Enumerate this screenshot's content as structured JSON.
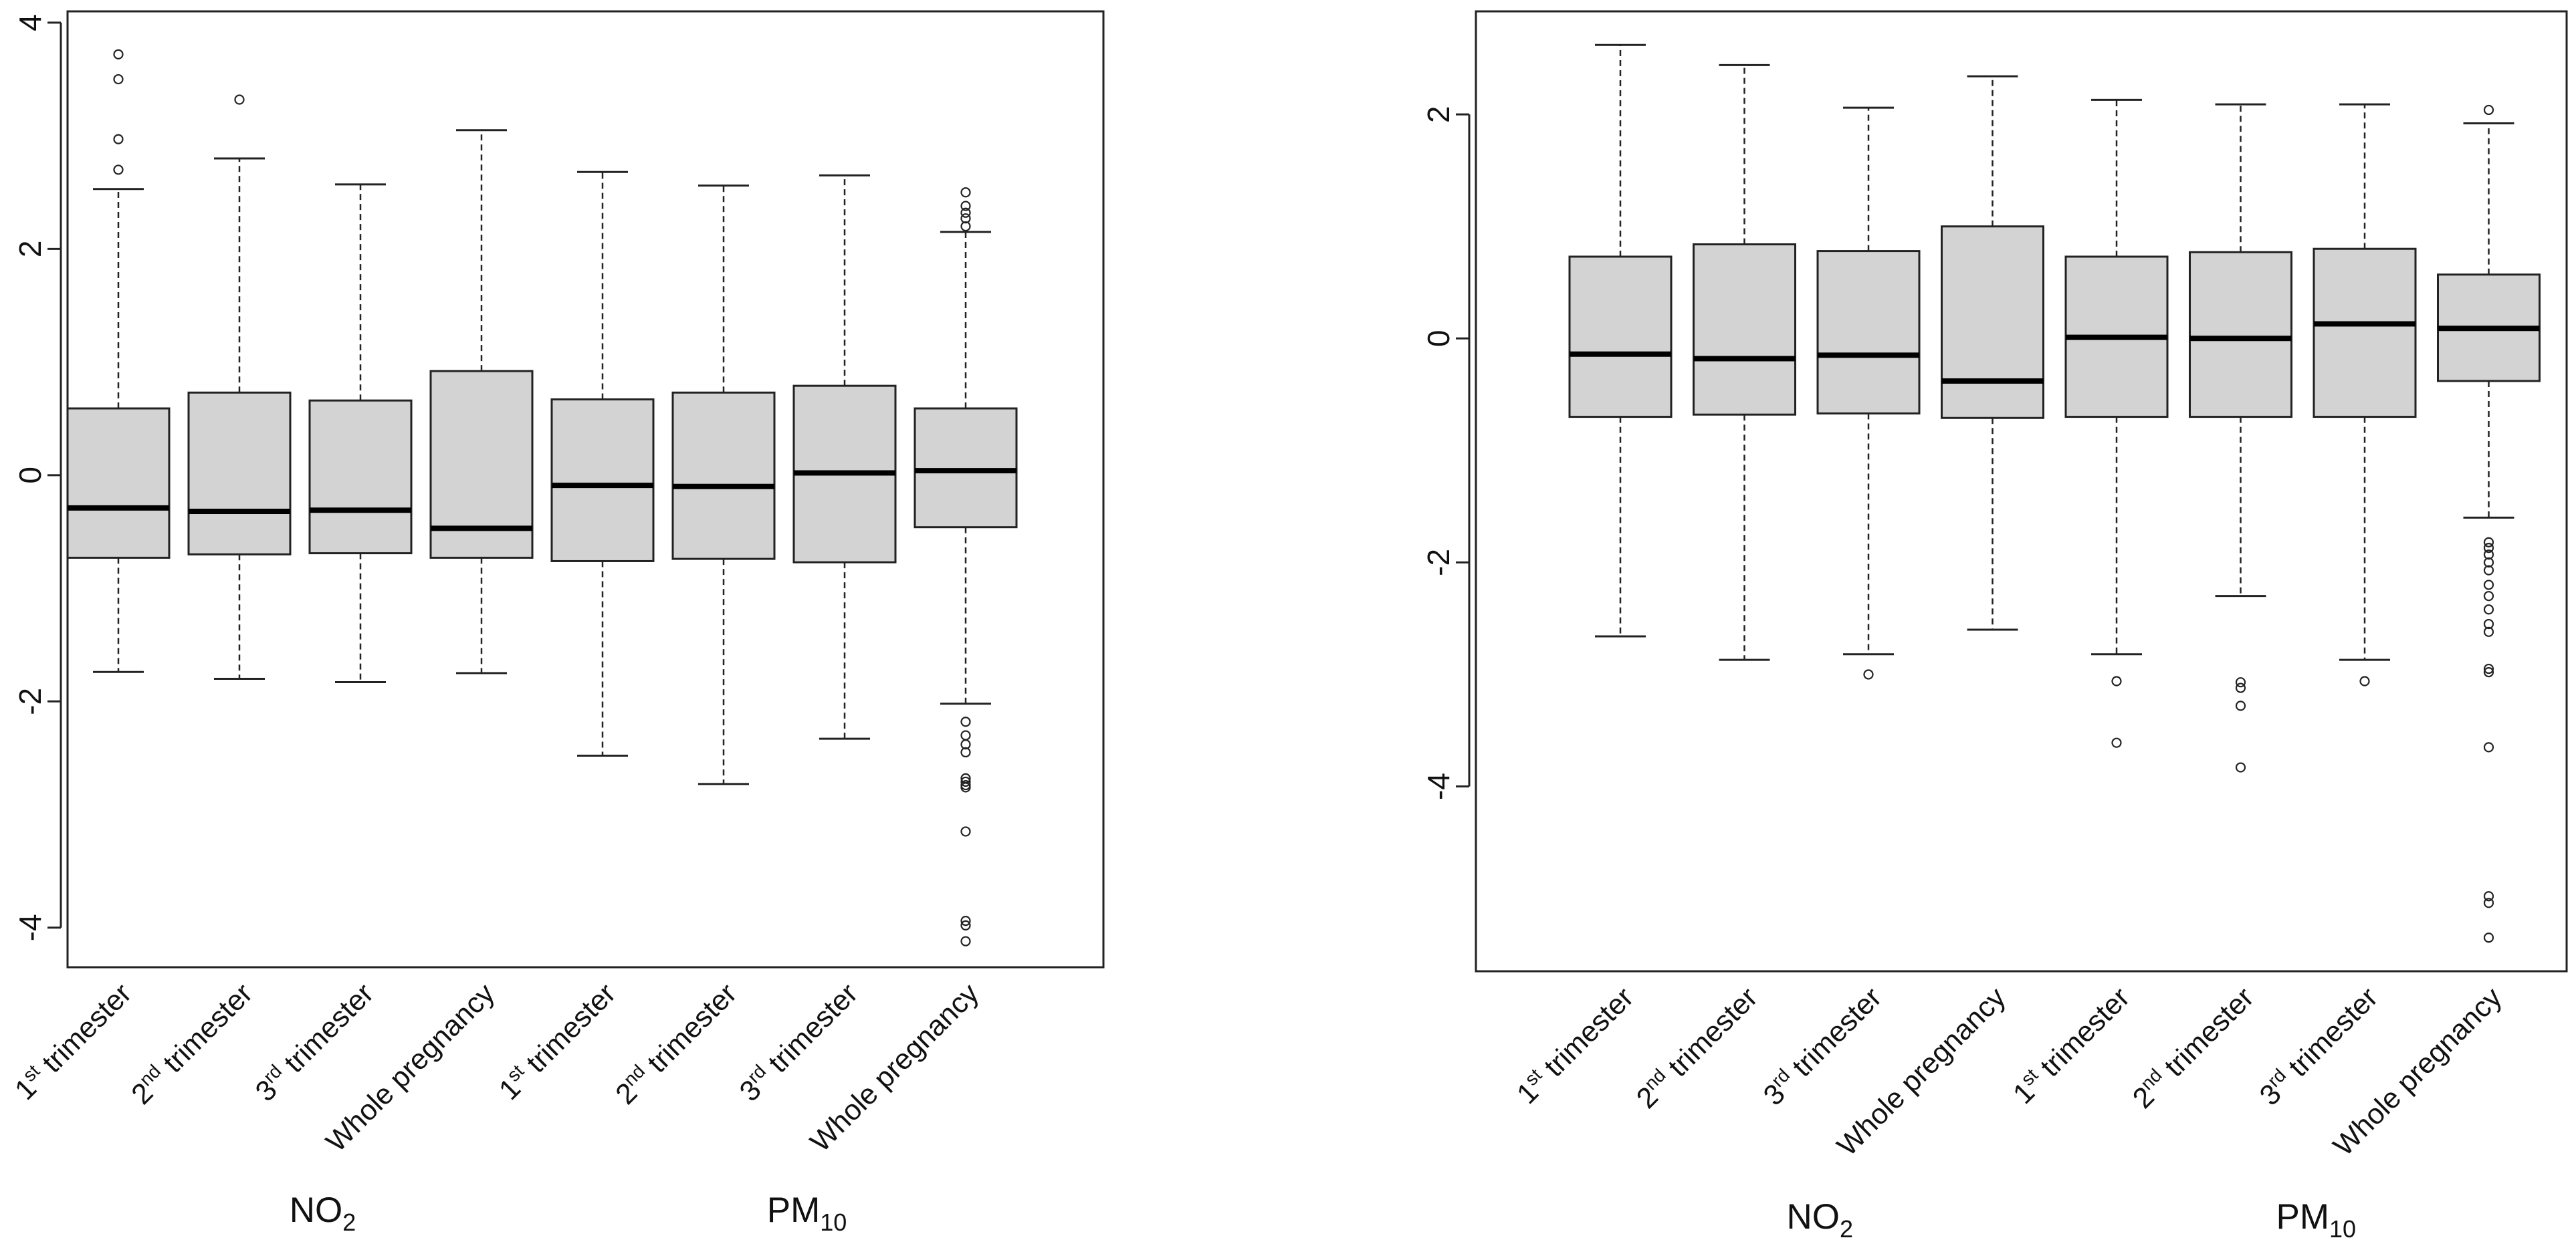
{
  "chart_data": [
    {
      "type": "boxplot",
      "title": "",
      "xlabel": "",
      "ylabel": "",
      "ylim": [
        -4.35,
        4.1
      ],
      "yticks": [
        -4,
        -2,
        0,
        2,
        4
      ],
      "ytick_labels": [
        "-4",
        "-2",
        "0",
        "2",
        "4"
      ],
      "categories": [
        {
          "label": "1st trimester",
          "main": "1",
          "sup": "st",
          "rest": " trimester"
        },
        {
          "label": "2nd trimester",
          "main": "2",
          "sup": "nd",
          "rest": " trimester"
        },
        {
          "label": "3rd trimester",
          "main": "3",
          "sup": "rd",
          "rest": " trimester"
        },
        {
          "label": "Whole pregnancy",
          "main": "Whole pregnancy",
          "sup": "",
          "rest": ""
        },
        {
          "label": "1st trimester",
          "main": "1",
          "sup": "st",
          "rest": " trimester"
        },
        {
          "label": "2nd trimester",
          "main": "2",
          "sup": "nd",
          "rest": " trimester"
        },
        {
          "label": "3rd trimester",
          "main": "3",
          "sup": "rd",
          "rest": " trimester"
        },
        {
          "label": "Whole pregnancy",
          "main": "Whole pregnancy",
          "sup": "",
          "rest": ""
        }
      ],
      "groups": [
        {
          "label": "NO2",
          "main": "NO",
          "sub": "2",
          "categories": [
            0,
            1,
            2,
            3
          ]
        },
        {
          "label": "PM10",
          "main": "PM",
          "sub": "10",
          "categories": [
            4,
            5,
            6,
            7
          ]
        }
      ],
      "boxes": [
        {
          "whisker_low": -1.74,
          "q1": -0.73,
          "median": -0.29,
          "q3": 0.59,
          "whisker_high": 2.53,
          "outliers": [
            2.7,
            2.97,
            3.5,
            3.72
          ]
        },
        {
          "whisker_low": -1.8,
          "q1": -0.7,
          "median": -0.32,
          "q3": 0.73,
          "whisker_high": 2.8,
          "outliers": [
            3.32
          ]
        },
        {
          "whisker_low": -1.83,
          "q1": -0.69,
          "median": -0.31,
          "q3": 0.66,
          "whisker_high": 2.57,
          "outliers": []
        },
        {
          "whisker_low": -1.75,
          "q1": -0.73,
          "median": -0.47,
          "q3": 0.92,
          "whisker_high": 3.05,
          "outliers": []
        },
        {
          "whisker_low": -2.48,
          "q1": -0.76,
          "median": -0.09,
          "q3": 0.67,
          "whisker_high": 2.68,
          "outliers": []
        },
        {
          "whisker_low": -2.73,
          "q1": -0.74,
          "median": -0.1,
          "q3": 0.73,
          "whisker_high": 2.56,
          "outliers": []
        },
        {
          "whisker_low": -2.33,
          "q1": -0.77,
          "median": 0.02,
          "q3": 0.79,
          "whisker_high": 2.65,
          "outliers": []
        },
        {
          "whisker_low": -2.02,
          "q1": -0.46,
          "median": 0.04,
          "q3": 0.59,
          "whisker_high": 2.15,
          "outliers": [
            2.2,
            2.27,
            2.32,
            2.38,
            2.5,
            -2.18,
            -2.3,
            -2.38,
            -2.45,
            -2.68,
            -2.71,
            -2.74,
            -2.76,
            -3.15,
            -3.94,
            -3.98,
            -4.12
          ]
        }
      ]
    },
    {
      "type": "boxplot",
      "title": "",
      "xlabel": "",
      "ylabel": "",
      "ylim": [
        -5.65,
        2.92
      ],
      "yticks": [
        -4,
        -2,
        0,
        2
      ],
      "ytick_labels": [
        "-4",
        "-2",
        "0",
        "2"
      ],
      "categories": [
        {
          "label": "1st trimester",
          "main": "1",
          "sup": "st",
          "rest": " trimester"
        },
        {
          "label": "2nd trimester",
          "main": "2",
          "sup": "nd",
          "rest": " trimester"
        },
        {
          "label": "3rd trimester",
          "main": "3",
          "sup": "rd",
          "rest": " trimester"
        },
        {
          "label": "Whole pregnancy",
          "main": "Whole pregnancy",
          "sup": "",
          "rest": ""
        },
        {
          "label": "1st trimester",
          "main": "1",
          "sup": "st",
          "rest": " trimester"
        },
        {
          "label": "2nd trimester",
          "main": "2",
          "sup": "nd",
          "rest": " trimester"
        },
        {
          "label": "3rd trimester",
          "main": "3",
          "sup": "rd",
          "rest": " trimester"
        },
        {
          "label": "Whole pregnancy",
          "main": "Whole pregnancy",
          "sup": "",
          "rest": ""
        }
      ],
      "groups": [
        {
          "label": "NO2",
          "main": "NO",
          "sub": "2",
          "categories": [
            0,
            1,
            2,
            3
          ]
        },
        {
          "label": "PM10",
          "main": "PM",
          "sub": "10",
          "categories": [
            4,
            5,
            6,
            7
          ]
        }
      ],
      "boxes": [
        {
          "whisker_low": -2.66,
          "q1": -0.7,
          "median": -0.14,
          "q3": 0.73,
          "whisker_high": 2.62,
          "outliers": []
        },
        {
          "whisker_low": -2.87,
          "q1": -0.68,
          "median": -0.18,
          "q3": 0.84,
          "whisker_high": 2.44,
          "outliers": []
        },
        {
          "whisker_low": -2.82,
          "q1": -0.67,
          "median": -0.15,
          "q3": 0.78,
          "whisker_high": 2.06,
          "outliers": [
            -3.0
          ]
        },
        {
          "whisker_low": -2.6,
          "q1": -0.71,
          "median": -0.38,
          "q3": 1.0,
          "whisker_high": 2.34,
          "outliers": []
        },
        {
          "whisker_low": -2.82,
          "q1": -0.7,
          "median": 0.01,
          "q3": 0.73,
          "whisker_high": 2.13,
          "outliers": [
            -3.06,
            -3.61
          ]
        },
        {
          "whisker_low": -2.3,
          "q1": -0.7,
          "median": 0.0,
          "q3": 0.77,
          "whisker_high": 2.09,
          "outliers": [
            -3.07,
            -3.12,
            -3.28,
            -3.83
          ]
        },
        {
          "whisker_low": -2.87,
          "q1": -0.7,
          "median": 0.13,
          "q3": 0.8,
          "whisker_high": 2.09,
          "outliers": [
            -3.06
          ]
        },
        {
          "whisker_low": -1.6,
          "q1": -0.38,
          "median": 0.09,
          "q3": 0.57,
          "whisker_high": 1.92,
          "outliers": [
            2.04,
            -1.82,
            -1.87,
            -1.93,
            -2.0,
            -2.07,
            -2.2,
            -2.3,
            -2.42,
            -2.55,
            -2.62,
            -2.95,
            -2.98,
            -3.65,
            -4.98,
            -5.04,
            -5.35
          ]
        }
      ]
    }
  ]
}
